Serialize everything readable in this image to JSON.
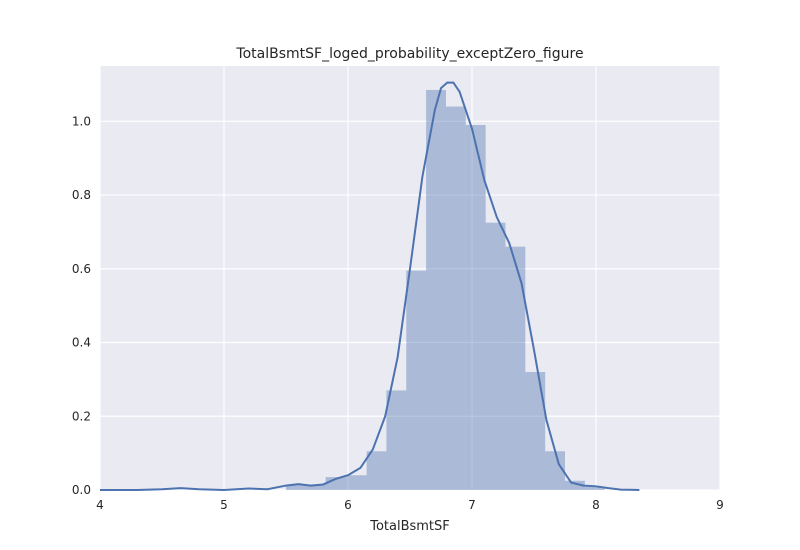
{
  "chart_data": {
    "type": "bar",
    "title": "TotalBsmtSF_loged_probability_exceptZero_figure",
    "xlabel": "TotalBsmtSF",
    "ylabel": "",
    "xlim": [
      4,
      9
    ],
    "ylim": [
      0,
      1.15
    ],
    "xticks": [
      "4",
      "5",
      "6",
      "7",
      "8",
      "9"
    ],
    "yticks": [
      "0.0",
      "0.2",
      "0.4",
      "0.6",
      "0.8",
      "1.0"
    ],
    "grid": true,
    "colors": {
      "background": "#eaeaf2",
      "grid": "#ffffff",
      "bars": "#4c72b0",
      "line": "#4c72b0"
    },
    "histogram": {
      "bin_edges": [
        5.5,
        5.65,
        5.82,
        5.99,
        6.15,
        6.31,
        6.47,
        6.63,
        6.79,
        6.95,
        7.11,
        7.27,
        7.43,
        7.59,
        7.75,
        7.91,
        8.07
      ],
      "values": [
        0.015,
        0.015,
        0.035,
        0.04,
        0.105,
        0.27,
        0.595,
        1.085,
        1.04,
        0.99,
        0.725,
        0.66,
        0.32,
        0.105,
        0.025,
        0.008
      ]
    },
    "kde": {
      "x": [
        4.0,
        4.3,
        4.5,
        4.65,
        4.8,
        5.0,
        5.2,
        5.35,
        5.5,
        5.6,
        5.7,
        5.8,
        5.9,
        6.0,
        6.1,
        6.2,
        6.3,
        6.4,
        6.5,
        6.6,
        6.7,
        6.75,
        6.8,
        6.85,
        6.9,
        7.0,
        7.1,
        7.2,
        7.3,
        7.4,
        7.5,
        7.6,
        7.7,
        7.8,
        7.9,
        8.0,
        8.1,
        8.2,
        8.35
      ],
      "y": [
        0.0,
        0.0,
        0.002,
        0.005,
        0.002,
        0.0,
        0.004,
        0.002,
        0.012,
        0.016,
        0.012,
        0.015,
        0.03,
        0.04,
        0.06,
        0.11,
        0.2,
        0.36,
        0.6,
        0.85,
        1.03,
        1.09,
        1.105,
        1.105,
        1.08,
        0.98,
        0.84,
        0.74,
        0.67,
        0.56,
        0.38,
        0.19,
        0.07,
        0.02,
        0.012,
        0.01,
        0.005,
        0.001,
        0.0
      ]
    }
  }
}
